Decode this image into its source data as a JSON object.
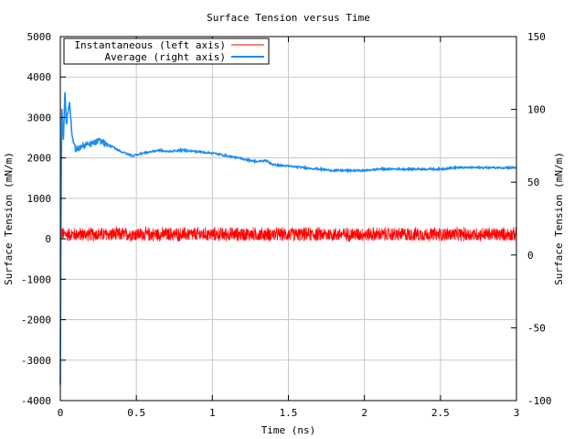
{
  "chart_data": {
    "type": "line",
    "title": "Surface Tension versus Time",
    "xlabel": "Time (ns)",
    "ylabel": "Surface Tension (mN/m)",
    "y2label": "Surface Tension (mN/m)",
    "xlim": [
      0,
      3
    ],
    "ylim": [
      -4000,
      5000
    ],
    "y2lim": [
      -100,
      150
    ],
    "xticks": [
      0,
      0.5,
      1,
      1.5,
      2,
      2.5,
      3
    ],
    "xtick_labels": [
      "0",
      "0.5",
      "1",
      "1.5",
      "2",
      "2.5",
      "3"
    ],
    "yticks": [
      -4000,
      -3000,
      -2000,
      -1000,
      0,
      1000,
      2000,
      3000,
      4000,
      5000
    ],
    "ytick_labels": [
      "-4000",
      "-3000",
      "-2000",
      "-1000",
      "0",
      "1000",
      "2000",
      "3000",
      "4000",
      "5000"
    ],
    "y2ticks": [
      -100,
      -50,
      0,
      50,
      100,
      150
    ],
    "y2tick_labels": [
      "-100",
      "-50",
      "0",
      "50",
      "100",
      "150"
    ],
    "grid": true,
    "legend_position": "top-left",
    "series": [
      {
        "name": "Instantaneous (left axis)",
        "axis": "left",
        "color": "#ff0000",
        "style": "noisy fluctuation around mean",
        "mean": 110,
        "amplitude": 200,
        "initial_spike_min": -3700,
        "initial_spike_max": 3400
      },
      {
        "name": "Average (right axis)",
        "axis": "right",
        "color": "#1e8cf0",
        "x": [
          0,
          0.005,
          0.01,
          0.02,
          0.03,
          0.04,
          0.06,
          0.08,
          0.1,
          0.13,
          0.16,
          0.2,
          0.25,
          0.28,
          0.3,
          0.35,
          0.4,
          0.45,
          0.48,
          0.5,
          0.55,
          0.6,
          0.65,
          0.7,
          0.8,
          0.9,
          1.0,
          1.1,
          1.2,
          1.3,
          1.35,
          1.4,
          1.5,
          1.6,
          1.7,
          1.8,
          1.9,
          1.95,
          2.0,
          2.1,
          2.2,
          2.3,
          2.4,
          2.5,
          2.6,
          2.7,
          2.8,
          2.9,
          3.0
        ],
        "y": [
          -90,
          40,
          100,
          80,
          112,
          90,
          105,
          80,
          72,
          74,
          75,
          76,
          78,
          78,
          76,
          74,
          71,
          69,
          68,
          69,
          70,
          71,
          72,
          71,
          72,
          71,
          70,
          68,
          66,
          64,
          65,
          62,
          61,
          60,
          59,
          58,
          58,
          58,
          58,
          59,
          59,
          59,
          59,
          59,
          60,
          60,
          60,
          60,
          60
        ]
      }
    ]
  }
}
